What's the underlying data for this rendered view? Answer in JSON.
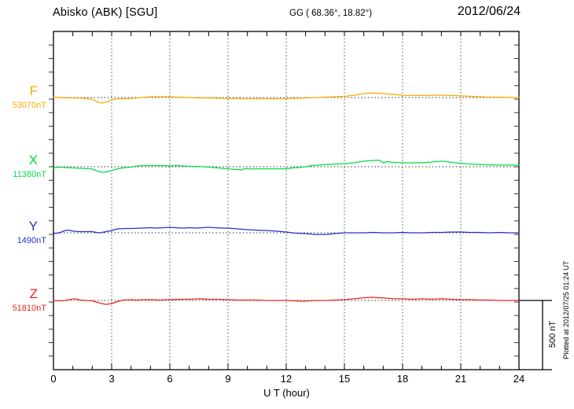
{
  "header": {
    "station_title": "Abisko (ABK)  [SGU]",
    "coords": "GG ( 68.36°,  18.82°)",
    "date": "2012/06/24"
  },
  "annotations": {
    "plotted_at": "Plotted at 2012/07/25 01:24 UT"
  },
  "colors": {
    "axis": "#000000",
    "grid": "#555555",
    "baseline_dots": "#333333",
    "F": "#FFAA00",
    "X": "#00DD44",
    "Y": "#2233CC",
    "Z": "#EE2222"
  },
  "chart_data": {
    "type": "line",
    "title": "Abisko (ABK) [SGU] magnetogram",
    "xlabel": "U T (hour)",
    "x_range": [
      0,
      24
    ],
    "x_ticks": [
      0,
      3,
      6,
      9,
      12,
      15,
      18,
      21,
      24
    ],
    "grid": "dotted vertical lines every 3 hours; dotted horizontal baseline per trace",
    "legend_position": "left margin (per-trace labels)",
    "scale_bar": {
      "label": "500 nT",
      "value_nT": 500
    },
    "units": "offsets in nT relative to each channel baseline value",
    "series": [
      {
        "name": "F",
        "baseline_label": "53070nT",
        "baseline_nT": 53070,
        "color": "#FFAA00",
        "points": [
          [
            0,
            0
          ],
          [
            0.3,
            2
          ],
          [
            0.6,
            -3
          ],
          [
            1,
            -3
          ],
          [
            1.5,
            -5
          ],
          [
            2,
            -12
          ],
          [
            2.2,
            -29
          ],
          [
            2.5,
            -41
          ],
          [
            2.8,
            -29
          ],
          [
            3.1,
            -12
          ],
          [
            3.4,
            -9
          ],
          [
            4,
            -9
          ],
          [
            4.5,
            0
          ],
          [
            5,
            6
          ],
          [
            5.5,
            6
          ],
          [
            6,
            6
          ],
          [
            6.5,
            3
          ],
          [
            7,
            0
          ],
          [
            7.5,
            -3
          ],
          [
            8,
            -3
          ],
          [
            8.5,
            -6
          ],
          [
            9,
            -6
          ],
          [
            9.5,
            -9
          ],
          [
            10,
            -9
          ],
          [
            10.5,
            -9
          ],
          [
            11,
            -9
          ],
          [
            11.5,
            -9
          ],
          [
            12,
            -9
          ],
          [
            12.5,
            -6
          ],
          [
            13,
            -3
          ],
          [
            13.5,
            0
          ],
          [
            14,
            3
          ],
          [
            14.5,
            6
          ],
          [
            15,
            9
          ],
          [
            15.5,
            17
          ],
          [
            16,
            29
          ],
          [
            16.4,
            33
          ],
          [
            16.8,
            31
          ],
          [
            17.2,
            26
          ],
          [
            17.6,
            22
          ],
          [
            18,
            17
          ],
          [
            18.5,
            15
          ],
          [
            19,
            15
          ],
          [
            19.5,
            17
          ],
          [
            20,
            17
          ],
          [
            20.5,
            15
          ],
          [
            21,
            12
          ],
          [
            21.5,
            9
          ],
          [
            22,
            6
          ],
          [
            22.5,
            3
          ],
          [
            23,
            3
          ],
          [
            23.5,
            1
          ],
          [
            24,
            0
          ]
        ]
      },
      {
        "name": "X",
        "baseline_label": "11380nT",
        "baseline_nT": 11380,
        "color": "#00DD44",
        "points": [
          [
            0,
            -9
          ],
          [
            0.3,
            -3
          ],
          [
            0.6,
            -6
          ],
          [
            1,
            -9
          ],
          [
            1.5,
            -12
          ],
          [
            2,
            -17
          ],
          [
            2.3,
            -35
          ],
          [
            2.6,
            -41
          ],
          [
            2.9,
            -33
          ],
          [
            3.2,
            -20
          ],
          [
            3.4,
            -12
          ],
          [
            3.7,
            -6
          ],
          [
            4,
            -3
          ],
          [
            4.3,
            6
          ],
          [
            4.7,
            9
          ],
          [
            5,
            9
          ],
          [
            5.5,
            9
          ],
          [
            6,
            6
          ],
          [
            6.3,
            9
          ],
          [
            6.7,
            6
          ],
          [
            7,
            3
          ],
          [
            7.4,
            3
          ],
          [
            7.7,
            0
          ],
          [
            8,
            -3
          ],
          [
            8.5,
            -9
          ],
          [
            9,
            -15
          ],
          [
            9.4,
            -20
          ],
          [
            9.7,
            -23
          ],
          [
            9.9,
            -12
          ],
          [
            10.1,
            -17
          ],
          [
            10.5,
            -15
          ],
          [
            11,
            -15
          ],
          [
            11.5,
            -15
          ],
          [
            12,
            -15
          ],
          [
            12.3,
            -9
          ],
          [
            12.7,
            -5
          ],
          [
            13,
            0
          ],
          [
            13.3,
            9
          ],
          [
            13.7,
            12
          ],
          [
            14,
            15
          ],
          [
            14.5,
            20
          ],
          [
            15,
            23
          ],
          [
            15.5,
            29
          ],
          [
            16,
            41
          ],
          [
            16.4,
            46
          ],
          [
            16.8,
            49
          ],
          [
            17,
            29
          ],
          [
            17.2,
            38
          ],
          [
            17.5,
            32
          ],
          [
            18,
            29
          ],
          [
            18.5,
            29
          ],
          [
            19,
            29
          ],
          [
            19.5,
            35
          ],
          [
            20,
            41
          ],
          [
            20.3,
            38
          ],
          [
            20.7,
            29
          ],
          [
            21,
            26
          ],
          [
            21.5,
            20
          ],
          [
            22,
            17
          ],
          [
            22.5,
            14
          ],
          [
            23,
            12
          ],
          [
            23.5,
            12
          ],
          [
            24,
            12
          ]
        ]
      },
      {
        "name": "Y",
        "baseline_label": "1490nT",
        "baseline_nT": 1490,
        "color": "#2233CC",
        "points": [
          [
            0,
            -6
          ],
          [
            0.3,
            0
          ],
          [
            0.6,
            17
          ],
          [
            0.8,
            20
          ],
          [
            1,
            12
          ],
          [
            1.3,
            9
          ],
          [
            1.7,
            9
          ],
          [
            2,
            9
          ],
          [
            2.2,
            3
          ],
          [
            2.4,
            0
          ],
          [
            2.7,
            9
          ],
          [
            3,
            17
          ],
          [
            3.3,
            29
          ],
          [
            3.7,
            32
          ],
          [
            4,
            32
          ],
          [
            4.5,
            35
          ],
          [
            5,
            38
          ],
          [
            5.3,
            35
          ],
          [
            5.7,
            38
          ],
          [
            6,
            41
          ],
          [
            6.3,
            38
          ],
          [
            6.7,
            35
          ],
          [
            7,
            38
          ],
          [
            7.3,
            35
          ],
          [
            7.7,
            38
          ],
          [
            8,
            41
          ],
          [
            8.3,
            38
          ],
          [
            8.7,
            35
          ],
          [
            9,
            35
          ],
          [
            9.5,
            29
          ],
          [
            10,
            23
          ],
          [
            10.5,
            20
          ],
          [
            11,
            17
          ],
          [
            11.5,
            12
          ],
          [
            12,
            6
          ],
          [
            12.5,
            -3
          ],
          [
            13,
            -6
          ],
          [
            13.5,
            -12
          ],
          [
            14,
            -12
          ],
          [
            14.5,
            -6
          ],
          [
            15,
            0
          ],
          [
            15.5,
            0
          ],
          [
            16,
            0
          ],
          [
            16.5,
            3
          ],
          [
            17,
            0
          ],
          [
            17.5,
            0
          ],
          [
            18,
            3
          ],
          [
            18.5,
            0
          ],
          [
            19,
            0
          ],
          [
            19.5,
            3
          ],
          [
            20,
            3
          ],
          [
            20.5,
            6
          ],
          [
            21,
            6
          ],
          [
            21.5,
            3
          ],
          [
            22,
            3
          ],
          [
            22.5,
            0
          ],
          [
            23,
            3
          ],
          [
            23.5,
            0
          ],
          [
            24,
            0
          ]
        ]
      },
      {
        "name": "Z",
        "baseline_label": "51810nT",
        "baseline_nT": 51810,
        "color": "#EE2222",
        "points": [
          [
            0,
            0
          ],
          [
            0.3,
            -3
          ],
          [
            0.6,
            0
          ],
          [
            0.9,
            9
          ],
          [
            1.1,
            12
          ],
          [
            1.4,
            3
          ],
          [
            1.7,
            0
          ],
          [
            2,
            -3
          ],
          [
            2.4,
            -20
          ],
          [
            2.7,
            -29
          ],
          [
            3,
            -23
          ],
          [
            3.3,
            -9
          ],
          [
            3.6,
            3
          ],
          [
            4,
            6
          ],
          [
            4.3,
            3
          ],
          [
            4.7,
            6
          ],
          [
            5,
            6
          ],
          [
            5.5,
            3
          ],
          [
            6,
            6
          ],
          [
            6.5,
            9
          ],
          [
            7,
            9
          ],
          [
            7.5,
            12
          ],
          [
            8,
            9
          ],
          [
            8.5,
            9
          ],
          [
            9,
            6
          ],
          [
            9.5,
            3
          ],
          [
            10,
            3
          ],
          [
            10.5,
            3
          ],
          [
            11,
            0
          ],
          [
            11.5,
            0
          ],
          [
            12,
            0
          ],
          [
            12.5,
            -3
          ],
          [
            12.9,
            -6
          ],
          [
            13.2,
            -3
          ],
          [
            13.5,
            0
          ],
          [
            14,
            0
          ],
          [
            14.5,
            3
          ],
          [
            15,
            6
          ],
          [
            15.5,
            12
          ],
          [
            16,
            20
          ],
          [
            16.4,
            23
          ],
          [
            16.8,
            20
          ],
          [
            17.2,
            17
          ],
          [
            17.6,
            12
          ],
          [
            18,
            12
          ],
          [
            18.5,
            9
          ],
          [
            19,
            12
          ],
          [
            19.5,
            9
          ],
          [
            20,
            12
          ],
          [
            20.5,
            9
          ],
          [
            21,
            6
          ],
          [
            21.5,
            6
          ],
          [
            22,
            3
          ],
          [
            22.5,
            3
          ],
          [
            23,
            0
          ],
          [
            23.5,
            0
          ],
          [
            24,
            0
          ]
        ]
      }
    ]
  }
}
